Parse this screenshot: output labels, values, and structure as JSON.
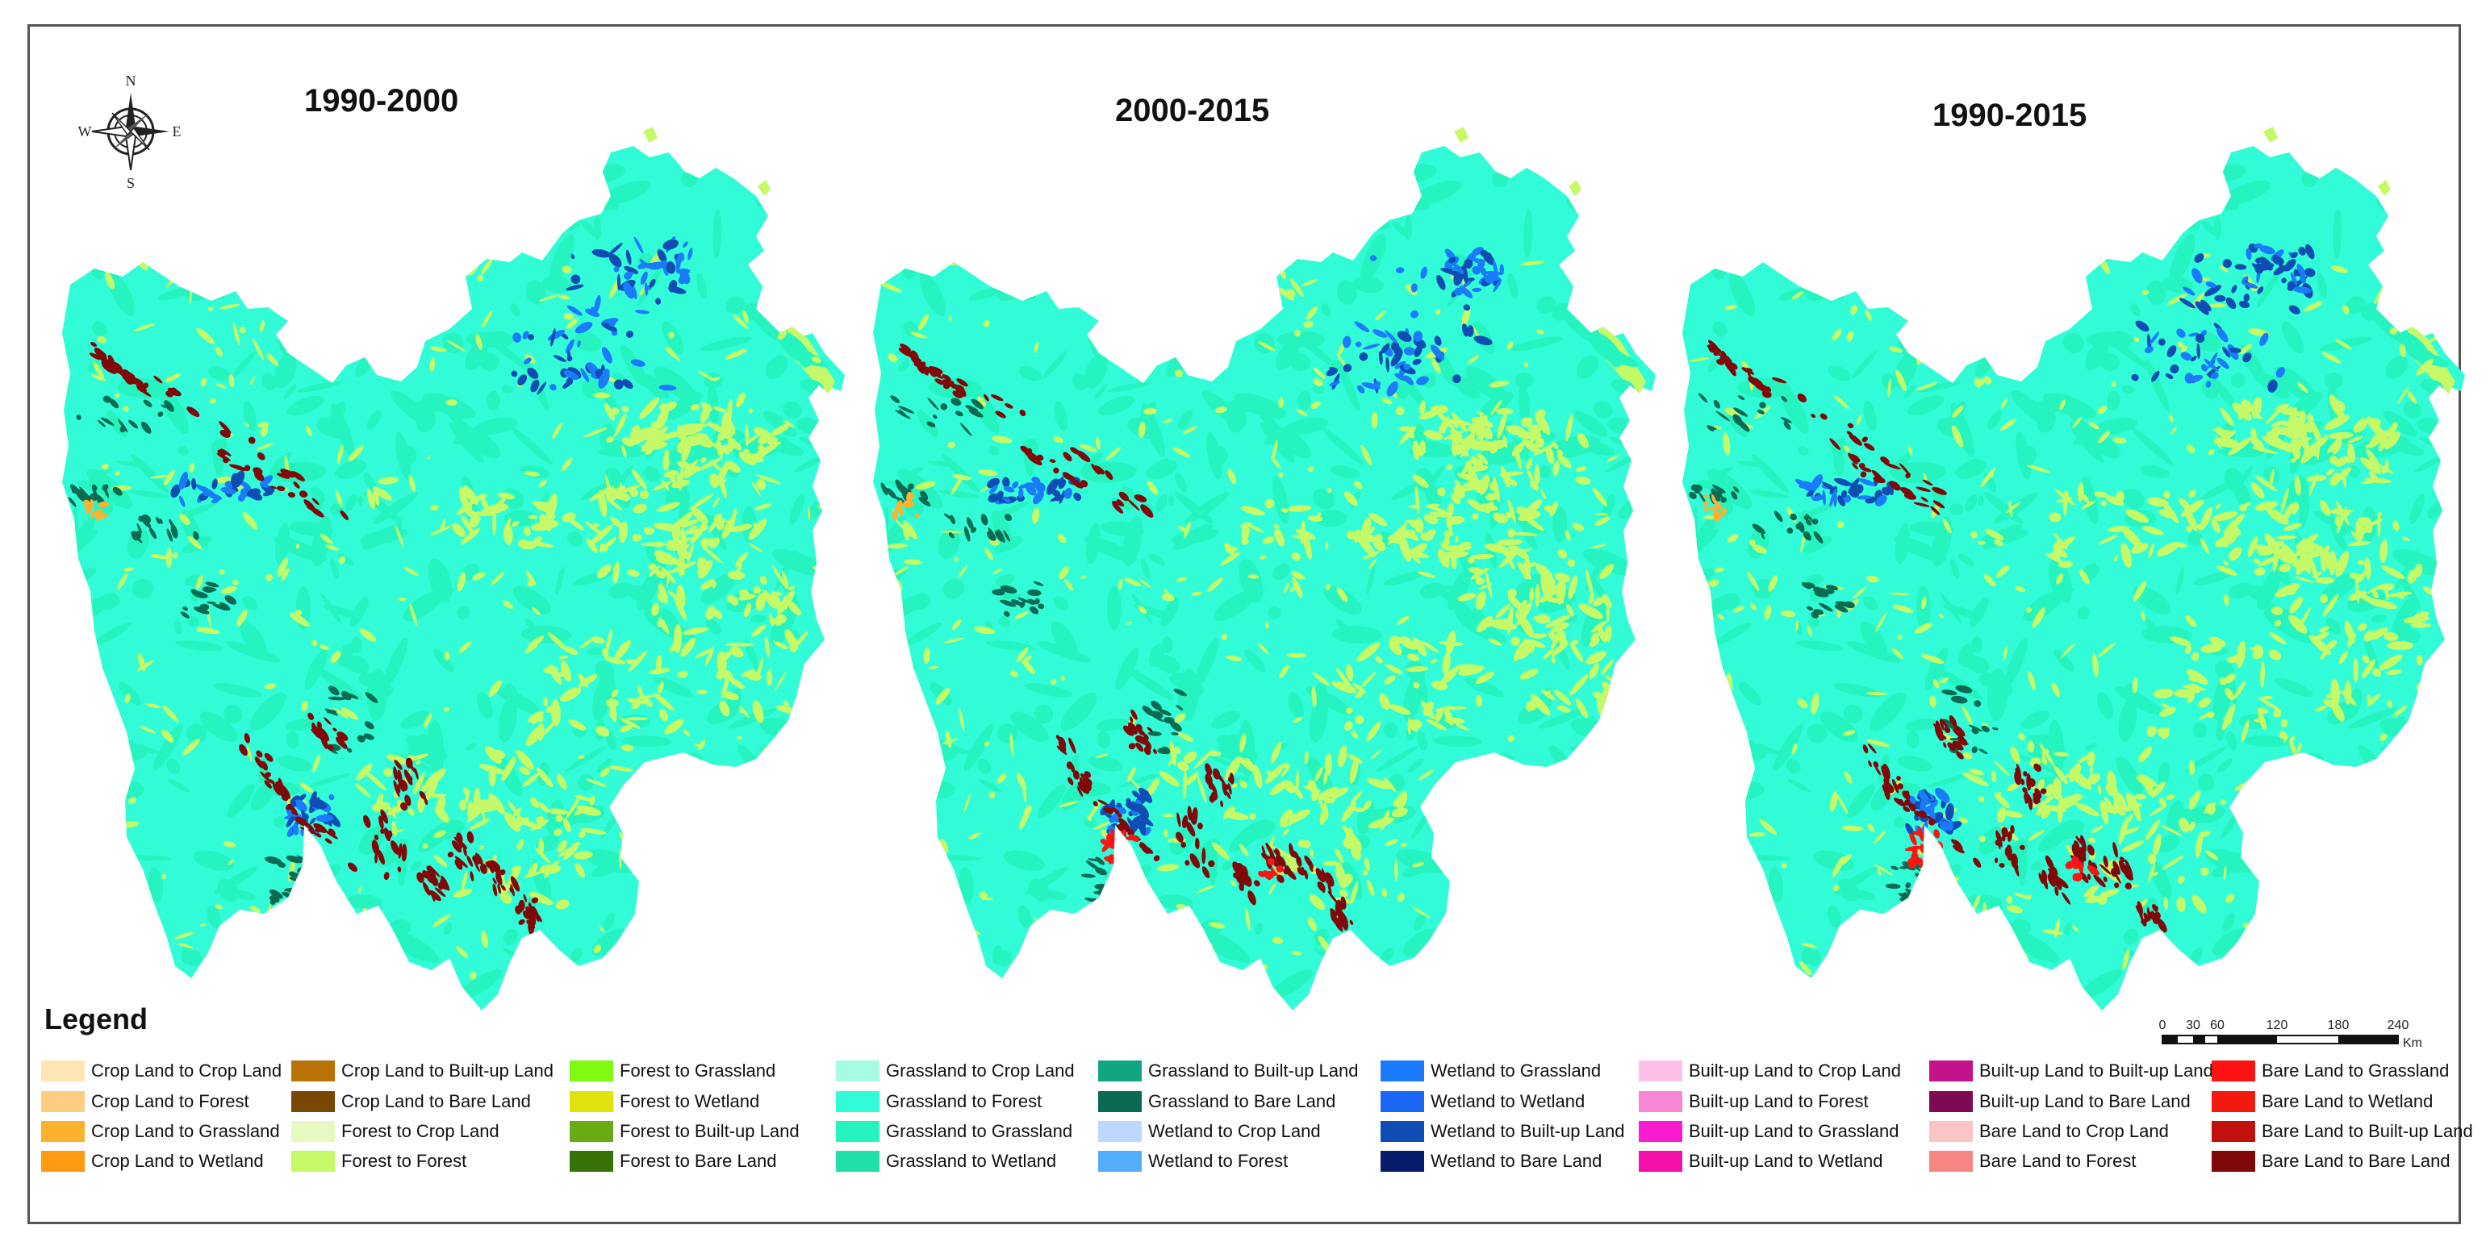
{
  "panels": [
    {
      "title": "1990-2000"
    },
    {
      "title": "2000-2015"
    },
    {
      "title": "1990-2015"
    }
  ],
  "compass": {
    "north": "N",
    "south": "S",
    "east": "E",
    "west": "W"
  },
  "legend": {
    "title": "Legend",
    "items": [
      {
        "label": "Crop Land to Crop Land",
        "color": "#FDE5B4"
      },
      {
        "label": "Crop Land to Forest",
        "color": "#FDCE7F"
      },
      {
        "label": "Crop Land to Grassland",
        "color": "#FCB22E"
      },
      {
        "label": "Crop Land to Wetland",
        "color": "#FD9A0F"
      },
      {
        "label": "Crop Land to Built-up Land",
        "color": "#B87206"
      },
      {
        "label": "Crop Land to Bare Land",
        "color": "#7A4604"
      },
      {
        "label": "Forest to Crop Land",
        "color": "#E6F9C0"
      },
      {
        "label": "Forest to Forest",
        "color": "#C6F968"
      },
      {
        "label": "Forest to Grassland",
        "color": "#7EFA10"
      },
      {
        "label": "Forest to Wetland",
        "color": "#E0E20E"
      },
      {
        "label": "Forest to Built-up Land",
        "color": "#6AAB14"
      },
      {
        "label": "Forest to Bare Land",
        "color": "#3A720A"
      },
      {
        "label": "Grassland to Crop Land",
        "color": "#A6FBE3"
      },
      {
        "label": "Grassland to Forest",
        "color": "#32FCD7"
      },
      {
        "label": "Grassland to Grassland",
        "color": "#26F4C0"
      },
      {
        "label": "Grassland to Wetland",
        "color": "#1FE0A8"
      },
      {
        "label": "Grassland to Built-up Land",
        "color": "#11A582"
      },
      {
        "label": "Grassland to Bare Land",
        "color": "#0A6A52"
      },
      {
        "label": "Wetland to Crop Land",
        "color": "#BED7FC"
      },
      {
        "label": "Wetland to Forest",
        "color": "#52AEFB"
      },
      {
        "label": "Wetland to Grassland",
        "color": "#1A7BFC"
      },
      {
        "label": "Wetland to Wetland",
        "color": "#1A66F5"
      },
      {
        "label": "Wetland to Built-up Land",
        "color": "#0F4DB5"
      },
      {
        "label": "Wetland to Bare Land",
        "color": "#081C6C"
      },
      {
        "label": "Built-up Land to Crop Land",
        "color": "#FDC1E8"
      },
      {
        "label": "Built-up Land to Forest",
        "color": "#F787D6"
      },
      {
        "label": "Built-up Land to Grassland",
        "color": "#FB1BD0"
      },
      {
        "label": "Built-up Land to Wetland",
        "color": "#F411A9"
      },
      {
        "label": "Built-up Land to Built-up Land",
        "color": "#C4118C"
      },
      {
        "label": "Built-up Land to Bare Land",
        "color": "#7D0A52"
      },
      {
        "label": "Bare Land to Crop Land",
        "color": "#FCC4C4"
      },
      {
        "label": "Bare Land to Forest",
        "color": "#F78584"
      },
      {
        "label": "Bare Land to Grassland",
        "color": "#FC1414"
      },
      {
        "label": "Bare Land to Wetland",
        "color": "#F21A0F"
      },
      {
        "label": "Bare Land to Built-up Land",
        "color": "#C2100C"
      },
      {
        "label": "Bare Land to Bare Land",
        "color": "#800808"
      }
    ]
  },
  "scale_bar": {
    "ticks": [
      "0",
      "30",
      "60",
      "120",
      "180",
      "240"
    ],
    "unit": "Km"
  }
}
